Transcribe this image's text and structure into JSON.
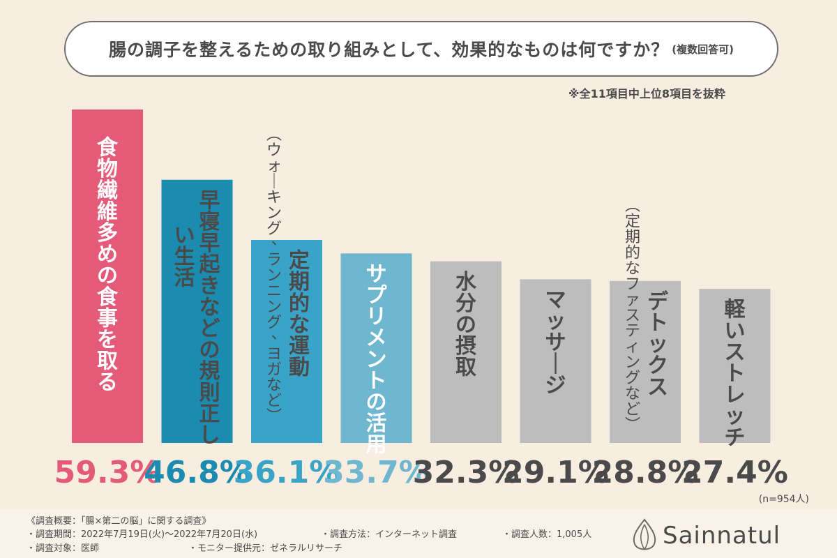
{
  "header": {
    "question": "腸の調子を整えるための取り組みとして、効果的なものは何ですか？",
    "question_note": "(複数回答可)",
    "extract_note": "※全11項目中上位8項目を抜粋"
  },
  "chart_data": {
    "type": "bar",
    "categories": [
      {
        "label": "食物繊維多めの食事を取る",
        "sublabel": ""
      },
      {
        "label": "早寝早起きなどの規則正しい生活",
        "sublabel": ""
      },
      {
        "label": "定期的な運動",
        "sublabel": "(ウォーキング、ランニング、ヨガなど)"
      },
      {
        "label": "サプリメントの活用",
        "sublabel": ""
      },
      {
        "label": "水分の摂取",
        "sublabel": ""
      },
      {
        "label": "マッサージ",
        "sublabel": ""
      },
      {
        "label": "デトックス",
        "sublabel": "(定期的なファスティングなど)"
      },
      {
        "label": "軽いストレッチ",
        "sublabel": ""
      }
    ],
    "values": [
      59.3,
      46.8,
      36.1,
      33.7,
      32.3,
      29.1,
      28.8,
      27.4
    ],
    "value_labels": [
      "59.3%",
      "46.8%",
      "36.1%",
      "33.7%",
      "32.3%",
      "29.1%",
      "28.8%",
      "27.4%"
    ],
    "bar_colors": [
      "#e45b7a",
      "#1b8cb0",
      "#3aa4c8",
      "#6fb6cf",
      "#bdbdbd",
      "#bdbdbd",
      "#bdbdbd",
      "#bdbdbd"
    ],
    "label_colors": [
      "#ffffff",
      "#4a4a4a",
      "#4a4a4a",
      "#ffffff",
      "#4a4a4a",
      "#4a4a4a",
      "#4a4a4a",
      "#4a4a4a"
    ],
    "value_colors": [
      "#e45b7a",
      "#1b8cb0",
      "#3aa4c8",
      "#6fb6cf",
      "#4a4a4a",
      "#4a4a4a",
      "#4a4a4a",
      "#4a4a4a"
    ],
    "sample_note": "(n=954人)"
  },
  "footer": {
    "survey_title": "《調査概要：「腸×第二の脳」に関する調査》",
    "period": "・調査期間：2022年7月19日(火)～2022年7月20日(水)",
    "method": "・調査方法：インターネット調査",
    "respondents": "・調査人数：1,005人",
    "target": "・調査対象：医師",
    "provider": "・モニター提供元：ゼネラルリサーチ"
  },
  "brand": {
    "name": "Sainnatul",
    "logo_icon": "leaf-drop-logo-icon"
  }
}
